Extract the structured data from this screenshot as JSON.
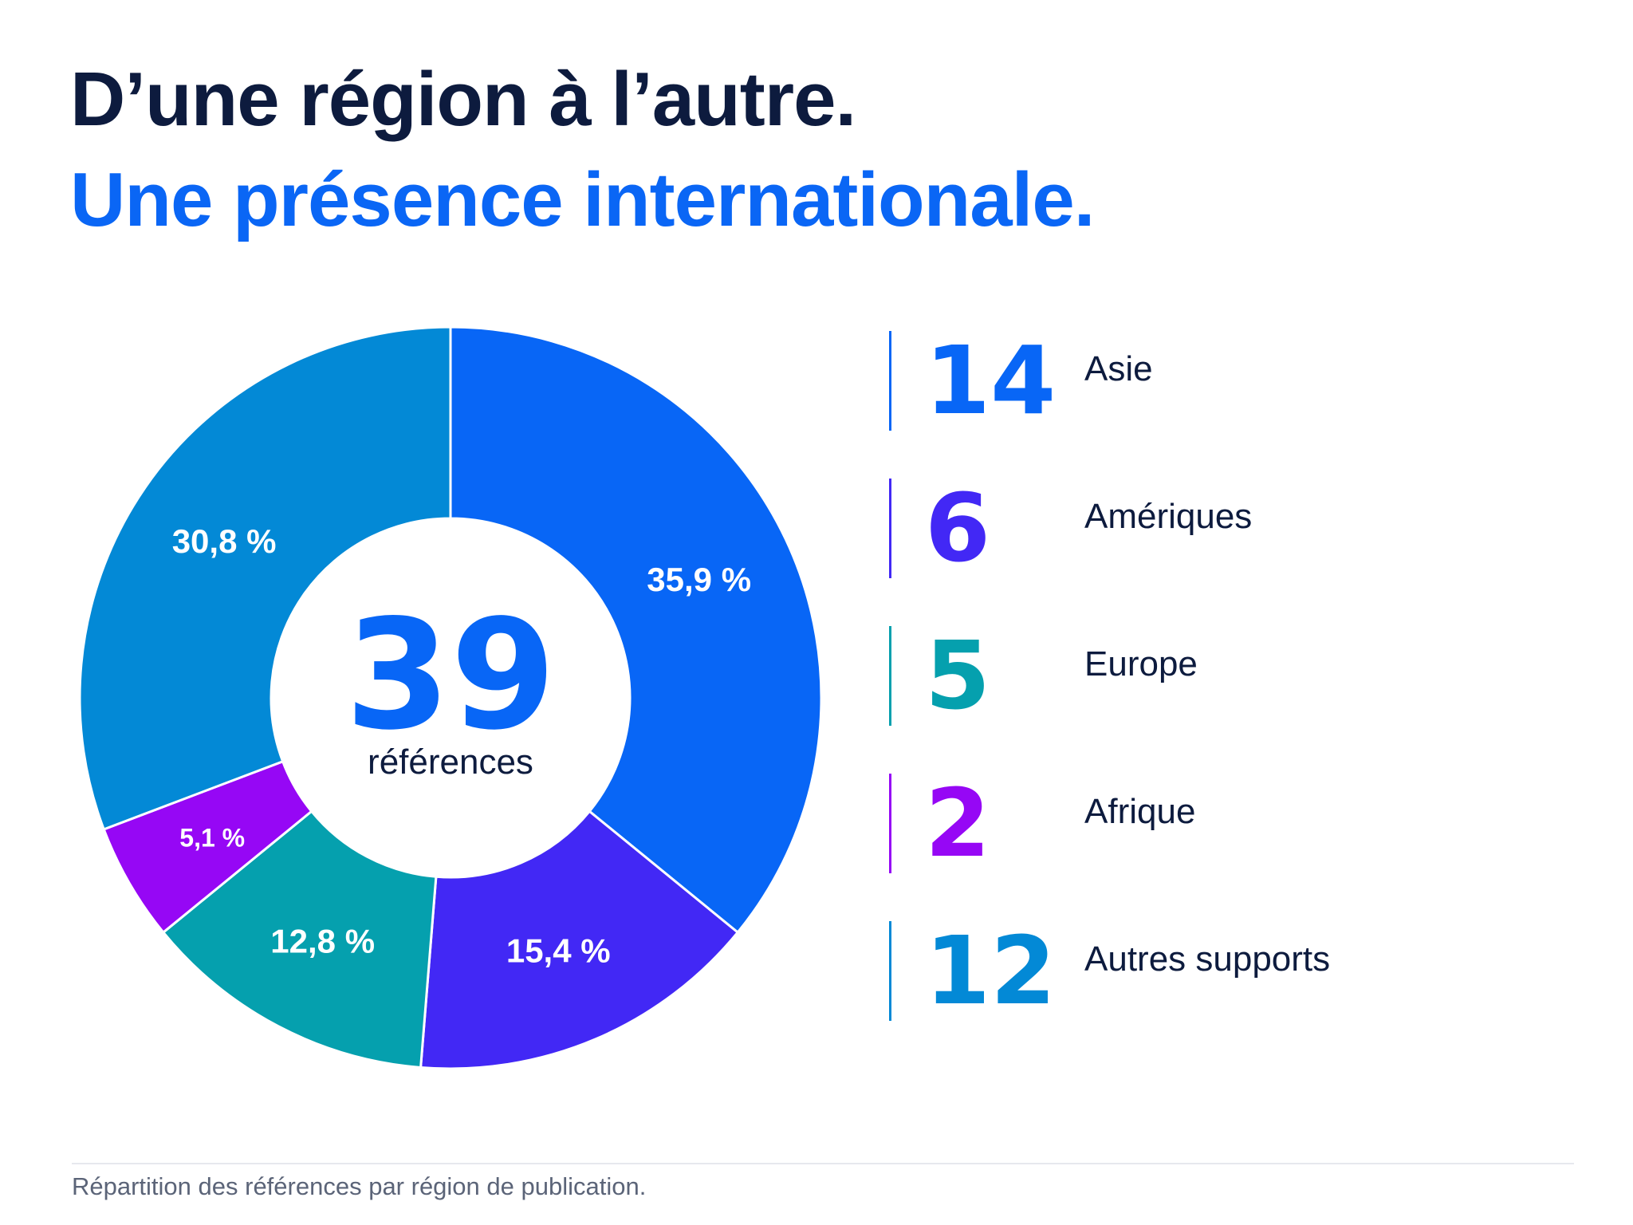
{
  "header": {
    "title": "D’une région à l’autre.",
    "subtitle": "Une présence internationale."
  },
  "center": {
    "count": "39",
    "caption": "références"
  },
  "colors": {
    "asie": "#0866f6",
    "ameriques": "#4228f5",
    "europe": "#05a0ae",
    "afrique": "#9607f5",
    "autres": "#0389d6",
    "title_dark": "#0d1b3e",
    "title_blue": "#0a66f5"
  },
  "chart_data": {
    "type": "pie",
    "donut": true,
    "total": 39,
    "slices": [
      {
        "name": "Asie",
        "value": 14,
        "percent_label": "35,9 %",
        "color": "#0866f6"
      },
      {
        "name": "Amériques",
        "value": 6,
        "percent_label": "15,4 %",
        "color": "#4228f5"
      },
      {
        "name": "Europe",
        "value": 5,
        "percent_label": "12,8 %",
        "color": "#05a0ae"
      },
      {
        "name": "Afrique",
        "value": 2,
        "percent_label": "5,1 %",
        "color": "#9607f5"
      },
      {
        "name": "Autres supports",
        "value": 12,
        "percent_label": "30,8 %",
        "color": "#0389d6"
      }
    ]
  },
  "legend": {
    "items": [
      {
        "count": "14",
        "label": "Asie",
        "color": "#0866f6"
      },
      {
        "count": "6",
        "label": "Amériques",
        "color": "#4228f5"
      },
      {
        "count": "5",
        "label": "Europe",
        "color": "#05a0ae"
      },
      {
        "count": "2",
        "label": "Afrique",
        "color": "#9607f5"
      },
      {
        "count": "12",
        "label": "Autres supports",
        "color": "#0389d6"
      }
    ]
  },
  "footer": {
    "caption": "Répartition des références par région de publication."
  }
}
